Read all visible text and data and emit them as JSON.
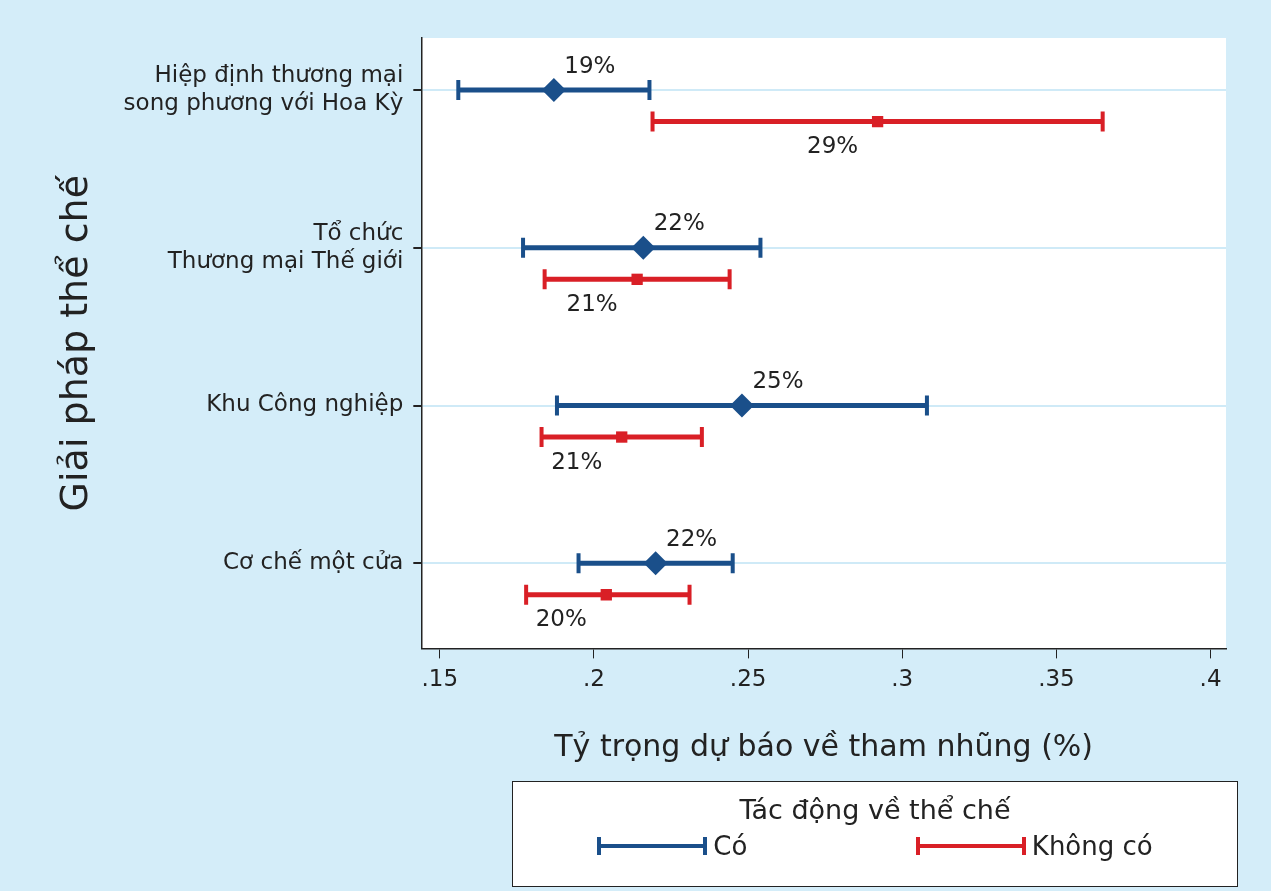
{
  "chart_data": {
    "type": "scatter",
    "orientation": "horizontal",
    "categories": [
      "Hiệp định thương mại\nsong phương với Hoa Kỳ",
      "Tổ chức\nThương mại Thế giới",
      "Khu Công nghiệp",
      "Cơ chế một cửa"
    ],
    "series": [
      {
        "name": "Có",
        "color": "#1a4f8a",
        "marker": "diamond",
        "values": [
          0.187,
          0.216,
          0.248,
          0.22
        ],
        "errors": [
          [
            0.156,
            0.218
          ],
          [
            0.177,
            0.254
          ],
          [
            0.188,
            0.308
          ],
          [
            0.195,
            0.245
          ]
        ],
        "value_labels": [
          "19%",
          "22%",
          "25%",
          "22%"
        ]
      },
      {
        "name": "Không có",
        "color": "#d91f26",
        "marker": "square",
        "values": [
          0.292,
          0.214,
          0.209,
          0.204
        ],
        "errors": [
          [
            0.219,
            0.365
          ],
          [
            0.184,
            0.244
          ],
          [
            0.183,
            0.235
          ],
          [
            0.178,
            0.231
          ]
        ],
        "value_labels": [
          "29%",
          "21%",
          "21%",
          "20%"
        ]
      }
    ],
    "xlabel": "Tỷ trọng dự báo về tham nhũng (%)",
    "ylabel": "Giải pháp thể chế",
    "xlim": [
      0.144,
      0.405
    ],
    "xticks": [
      {
        "value": 0.15,
        "label": ".15"
      },
      {
        "value": 0.2,
        "label": ".2"
      },
      {
        "value": 0.25,
        "label": ".25"
      },
      {
        "value": 0.3,
        "label": ".3"
      },
      {
        "value": 0.35,
        "label": ".35"
      },
      {
        "value": 0.4,
        "label": ".4"
      }
    ],
    "grid": "y",
    "legend": "bottom",
    "legend_title": "Tác động về thể chế"
  }
}
